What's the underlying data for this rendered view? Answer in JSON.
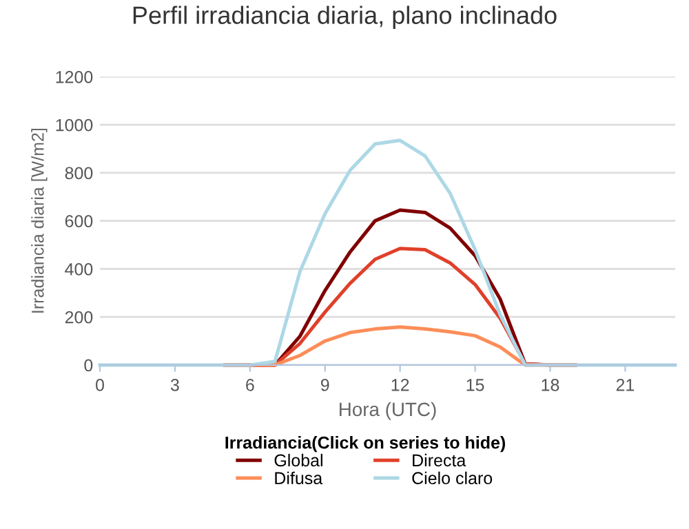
{
  "chart_data": {
    "type": "line",
    "title": "Perfil irradiancia diaria, plano inclinado",
    "xlabel": "Hora (UTC)",
    "ylabel": "Irradiancia diaria [W/m2]",
    "legend_title": "Irradiancia(Click on series to hide)",
    "x": [
      0,
      1,
      2,
      3,
      4,
      5,
      6,
      7,
      8,
      9,
      10,
      11,
      12,
      13,
      14,
      15,
      16,
      17,
      18,
      19,
      20,
      21,
      22,
      23
    ],
    "series": [
      {
        "name": "Global",
        "color": "#800000",
        "values": [
          null,
          null,
          null,
          null,
          null,
          0,
          0,
          0,
          120,
          310,
          470,
          600,
          645,
          635,
          570,
          455,
          275,
          5,
          0,
          0,
          null,
          null,
          null,
          null
        ]
      },
      {
        "name": "Directa",
        "color": "#e0402a",
        "values": [
          null,
          null,
          null,
          null,
          null,
          0,
          0,
          0,
          90,
          220,
          340,
          440,
          485,
          480,
          425,
          335,
          195,
          5,
          0,
          0,
          null,
          null,
          null,
          null
        ]
      },
      {
        "name": "Difusa",
        "color": "#fc8d59",
        "values": [
          null,
          null,
          null,
          null,
          null,
          0,
          0,
          0,
          40,
          100,
          135,
          150,
          158,
          150,
          138,
          122,
          75,
          0,
          0,
          0,
          null,
          null,
          null,
          null
        ]
      },
      {
        "name": "Cielo claro",
        "color": "#add8e6",
        "values": [
          0,
          0,
          0,
          0,
          0,
          0,
          0,
          15,
          390,
          630,
          810,
          920,
          935,
          870,
          715,
          480,
          210,
          0,
          0,
          0,
          0,
          0,
          0,
          0
        ]
      }
    ],
    "xlim": [
      0,
      23
    ],
    "xticks": [
      0,
      3,
      6,
      9,
      12,
      15,
      18,
      21
    ],
    "ylim": [
      0,
      1200
    ],
    "yticks": [
      0,
      200,
      400,
      600,
      800,
      1000,
      1200
    ],
    "grid": "y",
    "legend": "bottom",
    "marker": "none",
    "line_style": "solid"
  }
}
